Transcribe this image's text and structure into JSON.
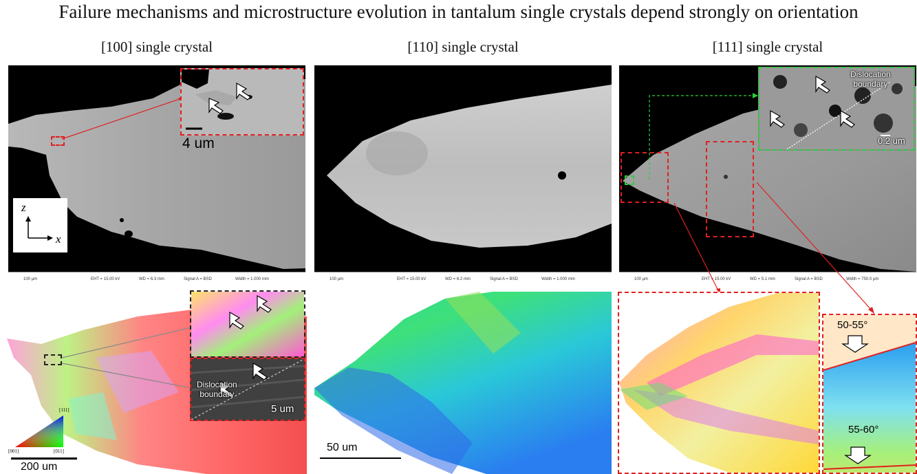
{
  "figure_title": "Failure mechanisms and microstructure evolution in tantalum single crystals depend strongly on orientation",
  "columns": [
    {
      "title": "[100] single crystal"
    },
    {
      "title": "[110] single crystal"
    },
    {
      "title": "[111] single crystal"
    }
  ],
  "sem_infobars": [
    {
      "scale": "100 µm",
      "eht": "EHT = 15.00 kV",
      "wd": "WD = 6.3 mm",
      "signal": "Signal A = BSD",
      "width": "Width = 1.000 mm"
    },
    {
      "scale": "100 µm",
      "eht": "EHT = 15.00 kV",
      "wd": "WD = 6.2 mm",
      "signal": "Signal A = BSD",
      "width": "Width = 1.000 mm"
    },
    {
      "scale": "100 µm",
      "eht": "EHT = 15.00 kV",
      "wd": "WD = 5.1 mm",
      "signal": "Signal A = BSD",
      "width": "Width = 750.0 µm"
    }
  ],
  "labels": {
    "inset_100_scale": "4 um",
    "axis_z": "z",
    "axis_x": "x",
    "disloc_111": "Dislocation\nboundary",
    "inset_111_scale": "0.2 um",
    "disloc_100": "Dislocation\nboundary",
    "inset_100_ebsd_scale": "5 um",
    "ipf_top": "[111]",
    "ipf_left": "[001]",
    "ipf_right": "[011]",
    "scale_200": "200 um",
    "scale_50": "50 um",
    "angle_top": "50-55°",
    "angle_bottom": "55-60°"
  }
}
